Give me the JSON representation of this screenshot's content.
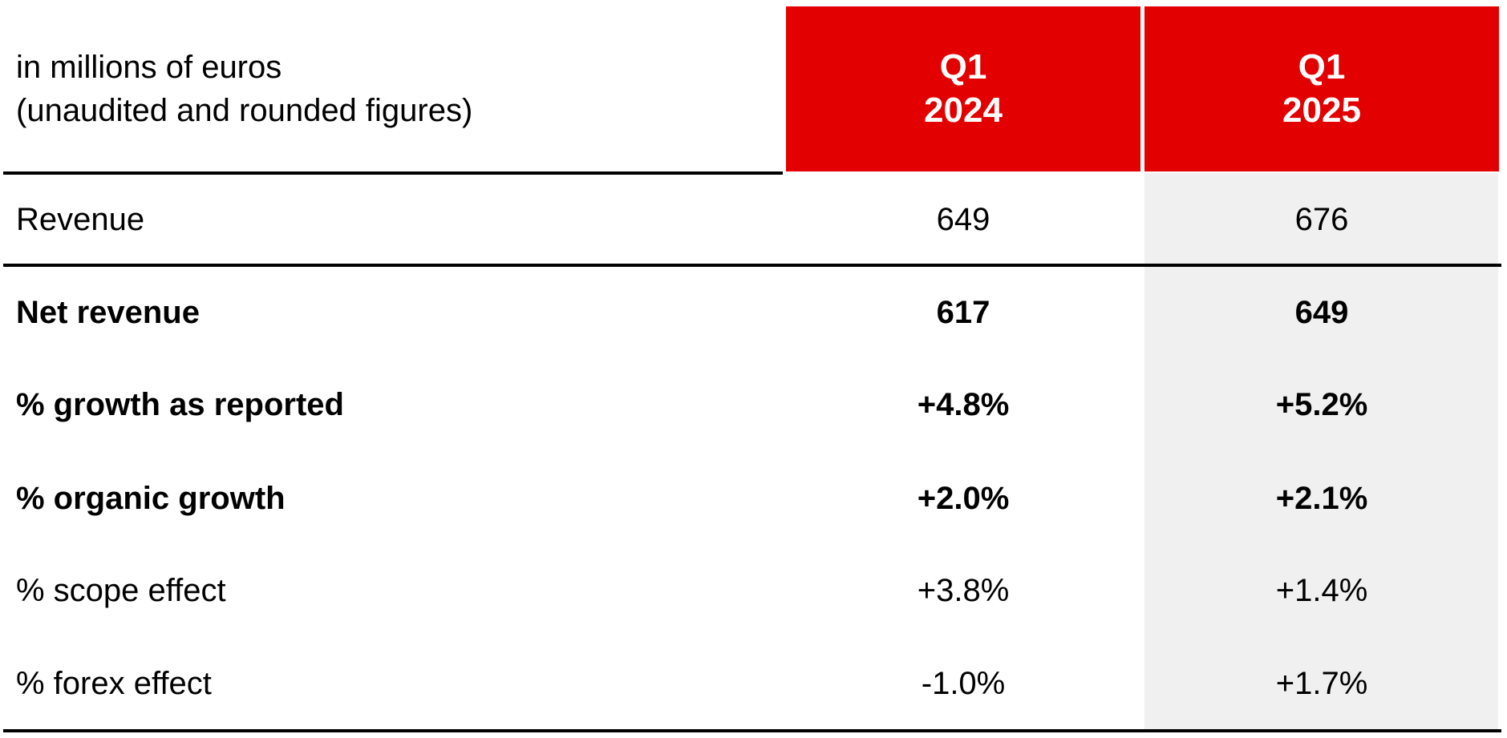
{
  "table": {
    "caption": [
      "in millions of euros",
      "(unaudited and rounded figures)"
    ],
    "columns": [
      {
        "quarter": "Q1",
        "year": "2024"
      },
      {
        "quarter": "Q1",
        "year": "2025"
      }
    ],
    "rows": [
      {
        "label": "Revenue",
        "values": [
          "649",
          "676"
        ],
        "bold": false
      },
      {
        "label": "Net revenue",
        "values": [
          "617",
          "649"
        ],
        "bold": true
      },
      {
        "label": "% growth as reported",
        "values": [
          "+4.8%",
          "+5.2%"
        ],
        "bold": true
      },
      {
        "label": "% organic growth",
        "values": [
          "+2.0%",
          "+2.1%"
        ],
        "bold": true
      },
      {
        "label": "% scope effect",
        "values": [
          "+3.8%",
          "+1.4%"
        ],
        "bold": false
      },
      {
        "label": "% forex effect",
        "values": [
          "-1.0%",
          "+1.7%"
        ],
        "bold": false
      }
    ]
  }
}
